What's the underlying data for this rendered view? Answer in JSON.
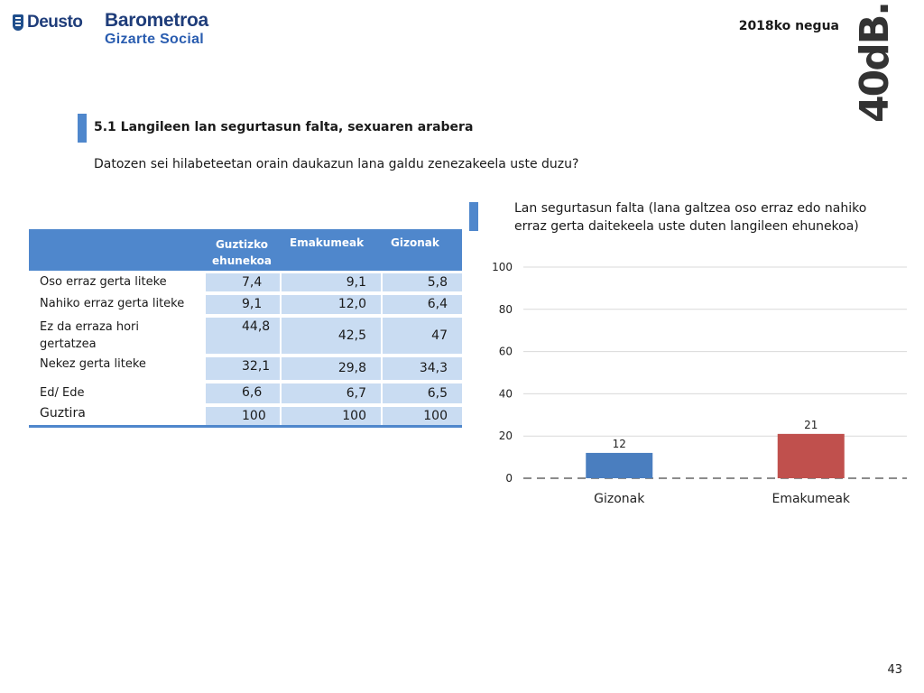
{
  "header": {
    "logo_deusto": "Deusto",
    "logo_barometroa": "Barometroa",
    "logo_gizarte_social": "Gizarte Social",
    "season": "2018ko negua",
    "brand": "40dB."
  },
  "section": {
    "title": "5.1 Langileen lan segurtasun falta, sexuaren arabera",
    "question": "Datozen sei hilabeteetan orain daukazun lana galdu zenezakeela uste duzu?"
  },
  "table": {
    "headers": [
      "Guztizko ehunekoa",
      "Emakumeak",
      "Gizonak"
    ],
    "rows": [
      {
        "label": "Oso erraz gerta liteke",
        "values": [
          "7,4",
          "9,1",
          "5,8"
        ]
      },
      {
        "label": "Nahiko erraz gerta liteke",
        "values": [
          "9,1",
          "12,0",
          "6,4"
        ]
      },
      {
        "label": "Ez da erraza hori gertatzea",
        "values": [
          "44,8",
          "42,5",
          "47"
        ]
      },
      {
        "label": "Nekez gerta liteke",
        "values": [
          "32,1",
          "29,8",
          "34,3"
        ]
      },
      {
        "label": "Ed/ Ede",
        "values": [
          "6,6",
          "6,7",
          "6,5"
        ]
      },
      {
        "label": "Guztira",
        "values": [
          "100",
          "100",
          "100"
        ]
      }
    ]
  },
  "chart_data": {
    "type": "bar",
    "title": "Lan segurtasun falta (lana galtzea oso erraz edo nahiko erraz gerta daitekeela uste duten langileen ehunekoa)",
    "categories": [
      "Gizonak",
      "Emakumeak"
    ],
    "values": [
      12,
      21
    ],
    "colors": [
      "#4a7ebf",
      "#c0504d"
    ],
    "ylim": [
      0,
      100
    ],
    "yticks": [
      0,
      20,
      40,
      60,
      80,
      100
    ],
    "grid": true,
    "baseline_style": "dashed"
  },
  "page_number": "43"
}
